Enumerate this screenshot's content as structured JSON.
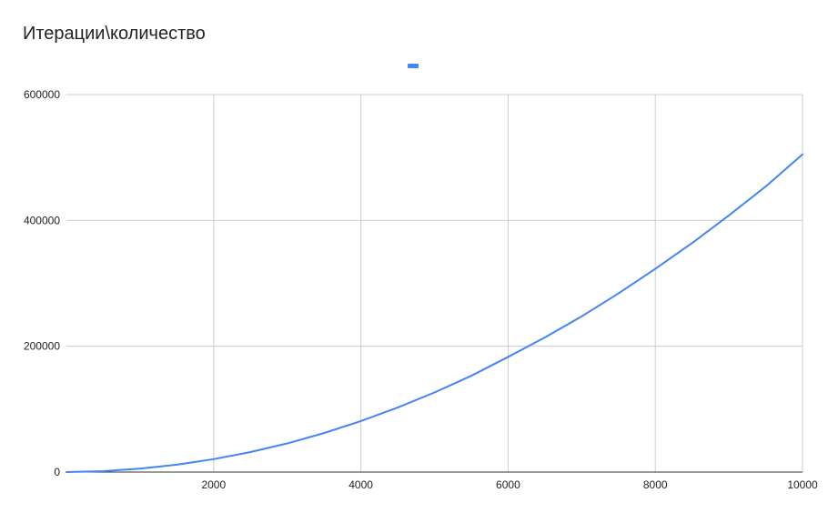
{
  "chart_data": {
    "type": "line",
    "title": "Итерации\\количество",
    "xlabel": "",
    "ylabel": "",
    "xlim": [
      0,
      10000
    ],
    "ylim": [
      0,
      600000
    ],
    "x_ticks": [
      2000,
      4000,
      6000,
      8000,
      10000
    ],
    "x_tick_labels": [
      "2000",
      "4000",
      "6000",
      "8000",
      "10000"
    ],
    "y_ticks": [
      0,
      200000,
      400000,
      600000
    ],
    "y_tick_labels": [
      "0",
      "200000",
      "400000",
      "600000"
    ],
    "grid": true,
    "legend": {
      "position": "top",
      "entries": [
        ""
      ]
    },
    "colors": {
      "series": "#4285f4",
      "grid": "#cccccc",
      "axis": "#333333"
    },
    "series": [
      {
        "values_x": [
          0,
          500,
          1000,
          1500,
          2000,
          2500,
          3000,
          3500,
          4000,
          4500,
          5000,
          5500,
          6000,
          6500,
          7000,
          7500,
          8000,
          8500,
          9000,
          9500,
          10000
        ],
        "values_y": [
          0,
          1500,
          5500,
          11800,
          20500,
          31800,
          45500,
          62000,
          81000,
          102500,
          126500,
          153000,
          183000,
          214000,
          247500,
          284000,
          323000,
          364000,
          408000,
          454000,
          505000
        ]
      }
    ]
  }
}
